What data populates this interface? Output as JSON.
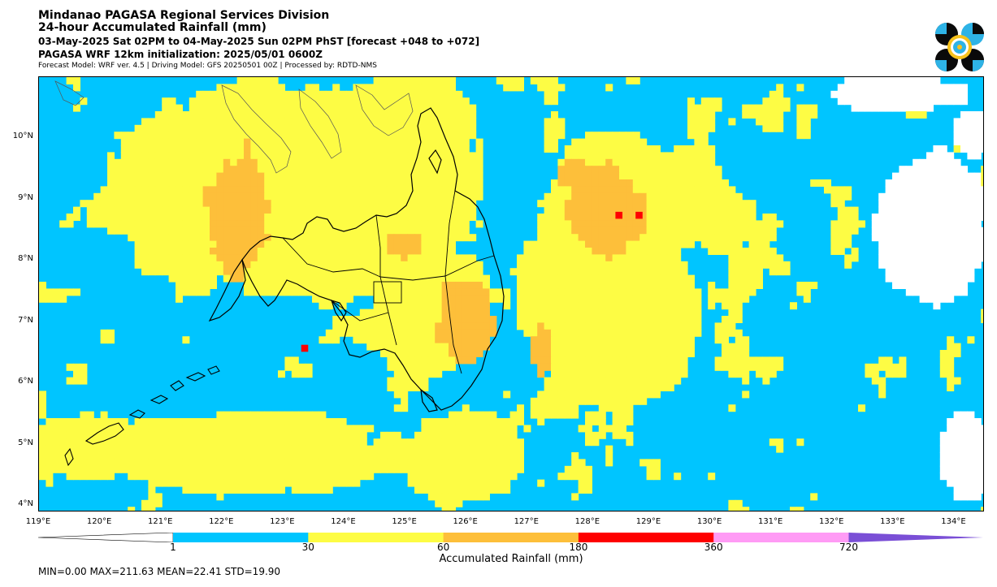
{
  "header": {
    "title": "Mindanao PAGASA Regional Services Division",
    "subtitle": "24-hour Accumulated Rainfall (mm)",
    "valid_period": "03-May-2025 Sat 02PM to 04-May-2025 Sun 02PM PhST [forecast +048 to +072]",
    "initialization": "PAGASA WRF 12km initialization: 2025/05/01 0600Z",
    "model_info": "Forecast Model: WRF ver. 4.5 | Driving Model: GFS 20250501 00Z | Processed by: RDTD-NMS"
  },
  "logo": {
    "icon": "pagasa-dost-logo-icon",
    "colors": [
      "#0a0a0a",
      "#2eb3e6",
      "#f7c21b"
    ]
  },
  "map": {
    "lat_labels": [
      "10°N",
      "9°N",
      "8°N",
      "7°N",
      "6°N",
      "5°N",
      "4°N"
    ],
    "lon_labels": [
      "119°E",
      "120°E",
      "121°E",
      "122°E",
      "123°E",
      "124°E",
      "125°E",
      "126°E",
      "127°E",
      "128°E",
      "129°E",
      "130°E",
      "131°E",
      "132°E",
      "133°E",
      "134°E"
    ],
    "lat_range": [
      3.9,
      11.0
    ],
    "lon_range": [
      119.0,
      134.5
    ],
    "max_point": {
      "lon": 128.5,
      "lat": 8.75,
      "value": 211.63
    }
  },
  "colorbar": {
    "title": "Accumulated Rainfall (mm)",
    "levels": [
      "1",
      "30",
      "60",
      "180",
      "360",
      "720"
    ],
    "colors": [
      "#00c5ff",
      "#fdfc44",
      "#fdbf3a",
      "#fe0000",
      "#ff9bf5",
      "#7a4fd6"
    ],
    "under_color": "#ffffff"
  },
  "stats": {
    "text": "MIN=0.00   MAX=211.63   MEAN=22.41   STD=19.90"
  }
}
